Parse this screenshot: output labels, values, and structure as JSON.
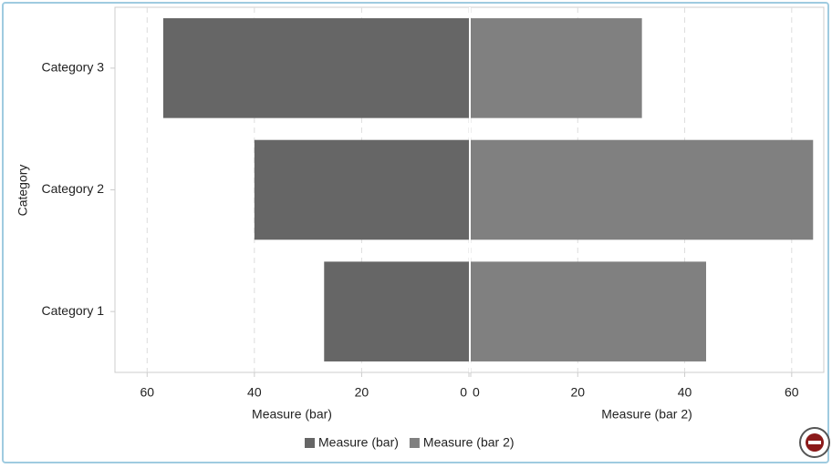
{
  "chart_data": {
    "type": "butterfly",
    "categories": [
      "Category 1",
      "Category 2",
      "Category 3"
    ],
    "ylabel": "Category",
    "xlabel": "Measure (bar)",
    "x2label": "Measure (bar 2)",
    "xlim": [
      0,
      66
    ],
    "xticks": [
      0,
      20,
      40,
      60
    ],
    "x_reversed": true,
    "x2lim": [
      0,
      66
    ],
    "x2ticks": [
      0,
      20,
      40,
      60
    ],
    "grid": true,
    "legend": "bottom",
    "series": [
      {
        "name": "Measure (bar)",
        "color": "#666666",
        "axis": "x",
        "values": [
          27,
          40,
          57
        ]
      },
      {
        "name": "Measure (bar 2)",
        "color": "#808080",
        "axis": "x2",
        "values": [
          44,
          64,
          32
        ]
      }
    ]
  }
}
